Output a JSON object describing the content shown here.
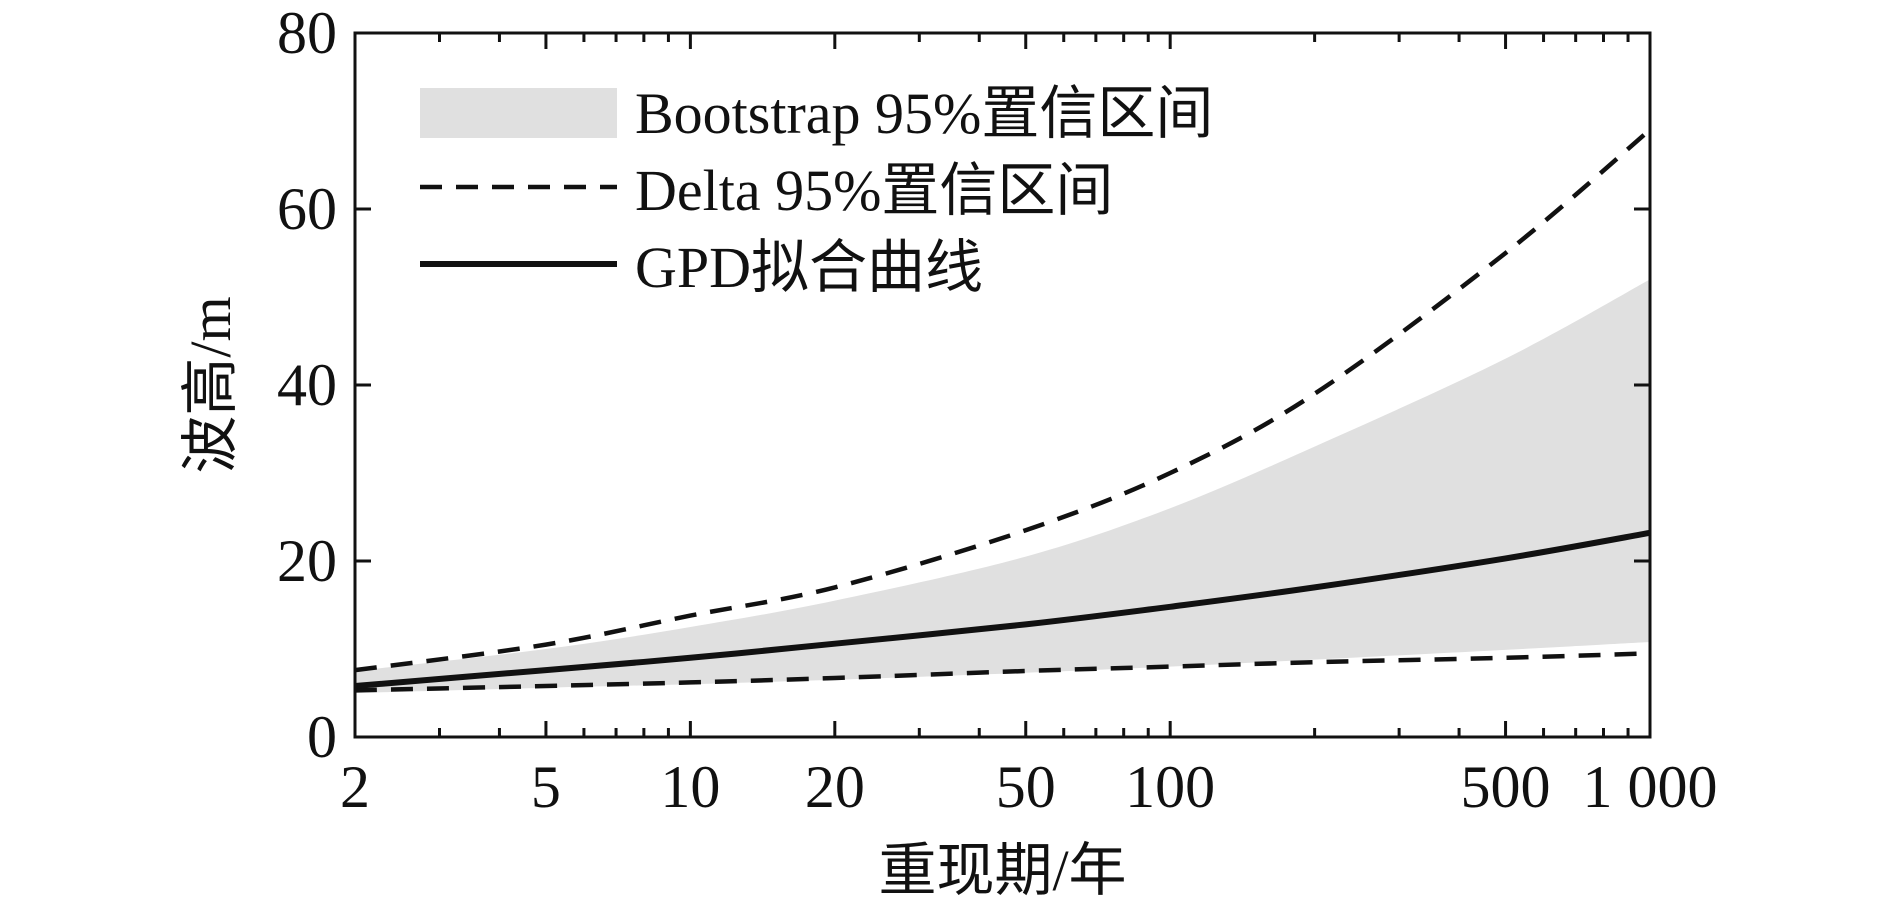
{
  "chart_data": {
    "type": "line",
    "title": "",
    "xlabel": "重现期/年",
    "ylabel": "波高/m",
    "x_scale": "log",
    "xlim": [
      2,
      1000
    ],
    "ylim": [
      0,
      80
    ],
    "x_ticks": [
      2,
      5,
      10,
      20,
      50,
      100,
      500,
      1000
    ],
    "x_tick_labels": [
      "2",
      "5",
      "10",
      "20",
      "50",
      "100",
      "500",
      "1 000"
    ],
    "y_ticks": [
      0,
      20,
      40,
      60,
      80
    ],
    "y_tick_labels": [
      "0",
      "20",
      "40",
      "60",
      "80"
    ],
    "grid": false,
    "legend_position": "top-left",
    "x": [
      2,
      5,
      10,
      20,
      50,
      100,
      200,
      500,
      1000
    ],
    "series": [
      {
        "name": "Bootstrap 95%置信区间",
        "style": "band",
        "lower": [
          5.0,
          5.6,
          6.0,
          6.5,
          7.3,
          8.0,
          8.8,
          9.9,
          10.8
        ],
        "upper": [
          7.5,
          10.0,
          12.5,
          15.5,
          20.5,
          26.0,
          33.0,
          43.0,
          52.0
        ],
        "color": "#e0e0e0"
      },
      {
        "name": "Delta 95%置信区间",
        "style": "dashed",
        "lower": [
          5.3,
          5.8,
          6.2,
          6.7,
          7.5,
          8.0,
          8.5,
          9.0,
          9.5
        ],
        "upper": [
          7.6,
          10.5,
          13.8,
          17.0,
          23.5,
          30.0,
          39.0,
          55.0,
          69.0
        ],
        "color": "#111111"
      },
      {
        "name": "GPD拟合曲线",
        "style": "solid",
        "values": [
          5.8,
          7.6,
          9.0,
          10.6,
          12.8,
          14.8,
          17.0,
          20.3,
          23.2
        ],
        "color": "#111111"
      }
    ]
  }
}
